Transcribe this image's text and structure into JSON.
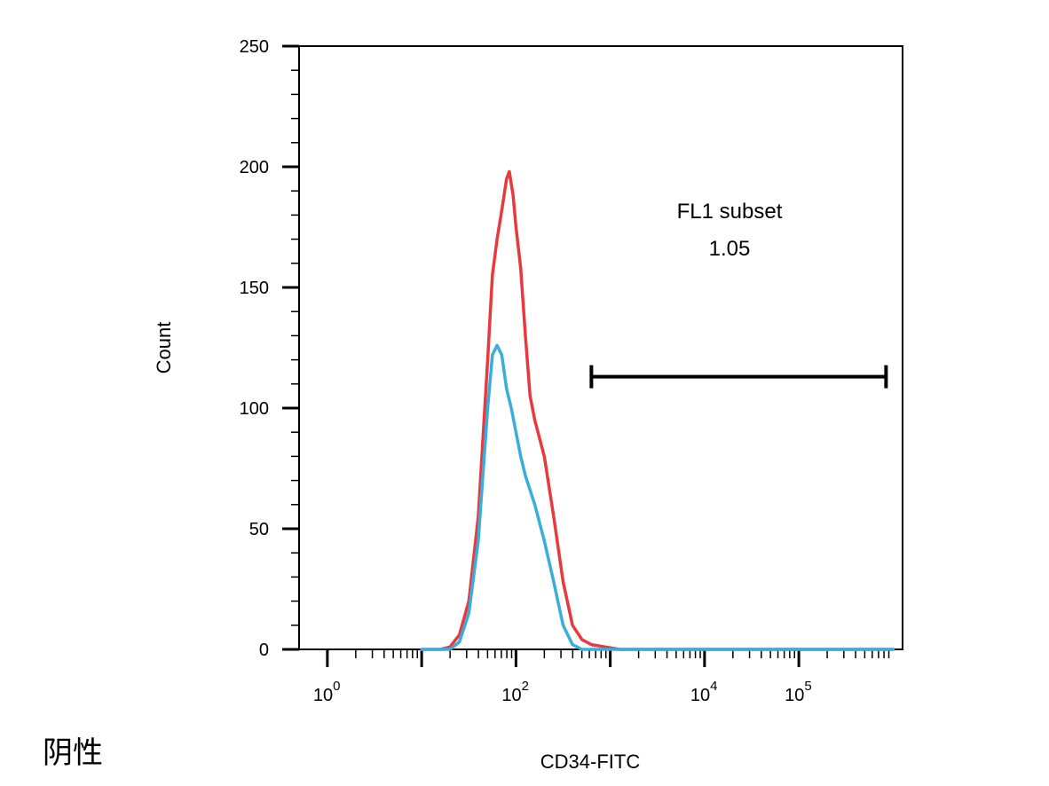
{
  "chart_data": {
    "type": "line",
    "title": "",
    "xlabel": "CD34-FITC",
    "ylabel": "Count",
    "xscale": "log",
    "xlim_exp": [
      -0.3,
      6.1
    ],
    "ylim": [
      0,
      250
    ],
    "y_ticks": [
      0,
      50,
      100,
      150,
      200,
      250
    ],
    "x_tick_labels": [
      {
        "base": "10",
        "exp": "0",
        "value_exp": 0
      },
      {
        "base": "10",
        "exp": "2",
        "value_exp": 2
      },
      {
        "base": "10",
        "exp": "4",
        "value_exp": 4
      },
      {
        "base": "10",
        "exp": "5",
        "value_exp": 5
      }
    ],
    "x_major_exps": [
      0,
      1,
      2,
      3,
      4,
      5
    ],
    "grid": false,
    "legend": "none",
    "series": [
      {
        "color": "#e8393f",
        "points": [
          [
            1.0,
            0
          ],
          [
            1.2,
            0
          ],
          [
            1.3,
            1
          ],
          [
            1.4,
            6
          ],
          [
            1.5,
            20
          ],
          [
            1.6,
            55
          ],
          [
            1.7,
            120
          ],
          [
            1.75,
            155
          ],
          [
            1.8,
            170
          ],
          [
            1.85,
            182
          ],
          [
            1.9,
            195
          ],
          [
            1.93,
            198
          ],
          [
            1.97,
            188
          ],
          [
            2.0,
            175
          ],
          [
            2.05,
            158
          ],
          [
            2.1,
            130
          ],
          [
            2.15,
            105
          ],
          [
            2.2,
            95
          ],
          [
            2.3,
            80
          ],
          [
            2.4,
            55
          ],
          [
            2.5,
            28
          ],
          [
            2.6,
            10
          ],
          [
            2.7,
            4
          ],
          [
            2.8,
            2
          ],
          [
            2.95,
            1
          ],
          [
            3.1,
            0
          ],
          [
            6.0,
            0
          ]
        ]
      },
      {
        "color": "#3aaedb",
        "points": [
          [
            1.0,
            0
          ],
          [
            1.3,
            0
          ],
          [
            1.4,
            3
          ],
          [
            1.5,
            15
          ],
          [
            1.6,
            45
          ],
          [
            1.7,
            100
          ],
          [
            1.75,
            122
          ],
          [
            1.8,
            126
          ],
          [
            1.85,
            122
          ],
          [
            1.9,
            108
          ],
          [
            1.95,
            100
          ],
          [
            2.0,
            90
          ],
          [
            2.05,
            80
          ],
          [
            2.1,
            72
          ],
          [
            2.2,
            60
          ],
          [
            2.3,
            45
          ],
          [
            2.4,
            28
          ],
          [
            2.5,
            10
          ],
          [
            2.6,
            2
          ],
          [
            2.7,
            0
          ],
          [
            6.0,
            0
          ]
        ]
      }
    ],
    "gate": {
      "name": "FL1 subset",
      "value": "1.05",
      "x_start_exp": 2.8,
      "x_end_exp": 6.0,
      "y": 113
    }
  },
  "side_label": "阴性"
}
